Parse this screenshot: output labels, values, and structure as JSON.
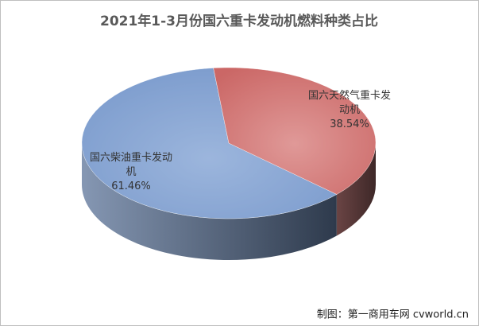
{
  "chart_data": {
    "type": "pie3d",
    "title": "2021年1-3月份国六重卡发动机燃料种类占比",
    "categories": [
      "国六柴油重卡发动机",
      "国六天然气重卡发动机"
    ],
    "values": [
      61.46,
      38.54
    ],
    "value_labels": [
      "61.46%",
      "38.54%"
    ],
    "colors": [
      "#8fabd8",
      "#d98886"
    ]
  },
  "source": "制图：第一商用车网 cvworld.cn"
}
